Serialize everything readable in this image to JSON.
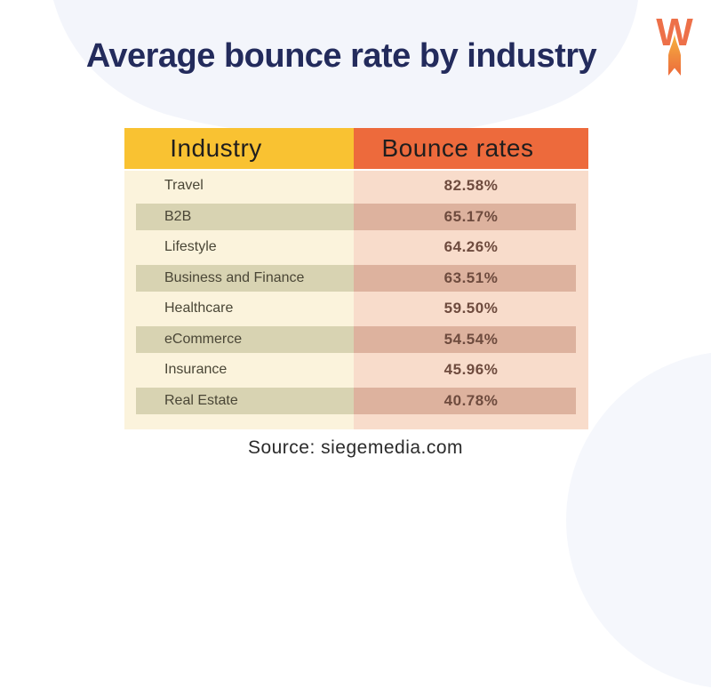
{
  "page": {
    "title": "Average bounce rate by industry",
    "source": "Source: siegemedia.com",
    "logo_letter": "W"
  },
  "table": {
    "headers": [
      {
        "label": "Industry"
      },
      {
        "label": "Bounce rates"
      }
    ],
    "rows": [
      {
        "industry": "Travel",
        "bounce_rate": "82.58%"
      },
      {
        "industry": "B2B",
        "bounce_rate": "65.17%"
      },
      {
        "industry": "Lifestyle",
        "bounce_rate": "64.26%"
      },
      {
        "industry": "Business and Finance",
        "bounce_rate": "63.51%"
      },
      {
        "industry": "Healthcare",
        "bounce_rate": "59.50%"
      },
      {
        "industry": "eCommerce",
        "bounce_rate": "54.54%"
      },
      {
        "industry": "Insurance",
        "bounce_rate": "45.96%"
      },
      {
        "industry": "Real Estate",
        "bounce_rate": "40.78%"
      }
    ]
  },
  "colors": {
    "title_navy": "#232B5C",
    "header_yellow": "#F9C232",
    "header_orange": "#ED6A3C",
    "body_cream": "#FBF3DC",
    "body_pink": "#F8DCCB",
    "stripe_khaki": "#D8D3B2",
    "stripe_salmon": "#DDB29E",
    "label_text": "#4A4636",
    "value_text": "#6E4B3E",
    "logo_orange": "#ED7049",
    "background_blob": "#F3F5FB"
  },
  "chart_data": {
    "type": "table",
    "title": "Average bounce rate by industry",
    "columns": [
      "Industry",
      "Bounce rates"
    ],
    "rows": [
      [
        "Travel",
        82.58
      ],
      [
        "B2B",
        65.17
      ],
      [
        "Lifestyle",
        64.26
      ],
      [
        "Business and Finance",
        63.51
      ],
      [
        "Healthcare",
        59.5
      ],
      [
        "eCommerce",
        54.54
      ],
      [
        "Insurance",
        45.96
      ],
      [
        "Real Estate",
        40.78
      ]
    ],
    "value_unit": "%",
    "source": "siegemedia.com"
  }
}
